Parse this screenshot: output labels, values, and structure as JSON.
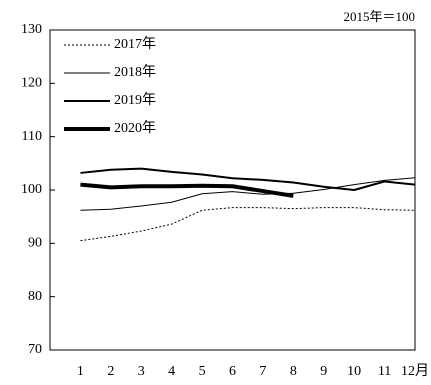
{
  "chart_data": {
    "type": "line",
    "annotation": "2015年＝100",
    "categories": [
      "1",
      "2",
      "3",
      "4",
      "5",
      "6",
      "7",
      "8",
      "9",
      "10",
      "11",
      "12月"
    ],
    "series": [
      {
        "name": "2017年",
        "color": "#000000",
        "width": 1,
        "dash": "2,2",
        "values": [
          90.5,
          91.3,
          92.3,
          93.6,
          96.2,
          96.7,
          96.7,
          96.5,
          96.7,
          96.7,
          96.3,
          96.2
        ]
      },
      {
        "name": "2018年",
        "color": "#000000",
        "width": 1,
        "dash": "none",
        "values": [
          96.2,
          96.4,
          97.0,
          97.7,
          99.3,
          99.7,
          99.2,
          99.4,
          100.1,
          101.0,
          101.8,
          102.3
        ]
      },
      {
        "name": "2019年",
        "color": "#000000",
        "width": 2,
        "dash": "none",
        "values": [
          103.2,
          103.8,
          104.0,
          103.4,
          102.9,
          102.2,
          101.9,
          101.4,
          100.6,
          100.0,
          101.6,
          101.0
        ]
      },
      {
        "name": "2020年",
        "color": "#000000",
        "width": 4,
        "dash": "none",
        "values": [
          101.0,
          100.5,
          100.7,
          100.7,
          100.8,
          100.7,
          99.8,
          98.9,
          null,
          null,
          null,
          null
        ]
      }
    ],
    "ylim": [
      70,
      130
    ],
    "yticks": [
      70,
      80,
      90,
      100,
      110,
      120,
      130
    ],
    "legend": "upper-left"
  }
}
